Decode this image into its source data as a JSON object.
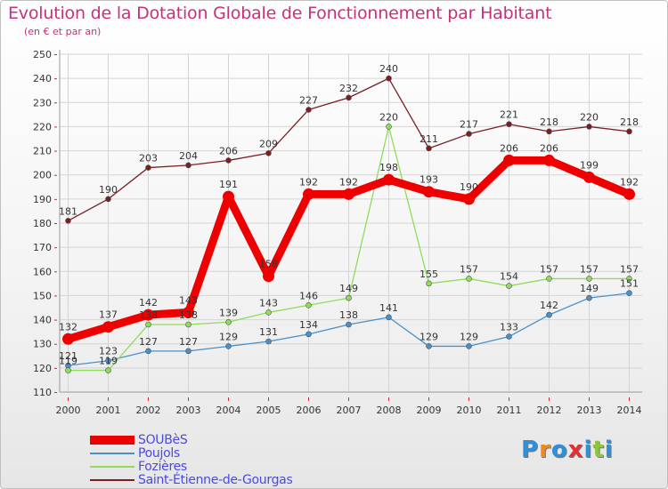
{
  "header": {
    "title": "Evolution de la Dotation Globale de Fonctionnement par Habitant",
    "subtitle": "(en € et par an)"
  },
  "brand": {
    "text": "Proxiti",
    "letters": [
      "P",
      "r",
      "o",
      "x",
      "i",
      "t",
      "i"
    ],
    "colors": [
      "#2f8fd8",
      "#f08a1a",
      "#2f8fd8",
      "#e23030",
      "#2f8fd8",
      "#8cc63f",
      "#2f8fd8"
    ]
  },
  "chart_data": {
    "type": "line",
    "title": "Evolution de la Dotation Globale de Fonctionnement par Habitant",
    "ylabel": "(en € et par an)",
    "xlabel": "",
    "ylim": [
      110,
      250
    ],
    "ytick_step": 10,
    "grid": true,
    "legend_position": "bottom-left",
    "categories": [
      "2000",
      "2001",
      "2002",
      "2003",
      "2004",
      "2005",
      "2006",
      "2007",
      "2008",
      "2009",
      "2010",
      "2011",
      "2012",
      "2013",
      "2014"
    ],
    "series": [
      {
        "name": "SOUBèS",
        "color": "#ee0000",
        "values": [
          132,
          137,
          142,
          143,
          191,
          158,
          192,
          192,
          198,
          193,
          190,
          206,
          206,
          199,
          192
        ]
      },
      {
        "name": "Poujols",
        "color": "#4a90c8",
        "values": [
          121,
          123,
          127,
          127,
          129,
          131,
          134,
          138,
          141,
          129,
          129,
          133,
          142,
          149,
          151
        ]
      },
      {
        "name": "Fozières",
        "color": "#8fdc5a",
        "values": [
          119,
          119,
          138,
          138,
          139,
          143,
          146,
          149,
          220,
          155,
          157,
          154,
          157,
          157,
          157
        ]
      },
      {
        "name": "Saint-Étienne-de-Gourgas",
        "color": "#7a1e22",
        "values": [
          181,
          190,
          203,
          204,
          206,
          209,
          227,
          232,
          240,
          211,
          217,
          221,
          218,
          220,
          218
        ]
      }
    ]
  }
}
